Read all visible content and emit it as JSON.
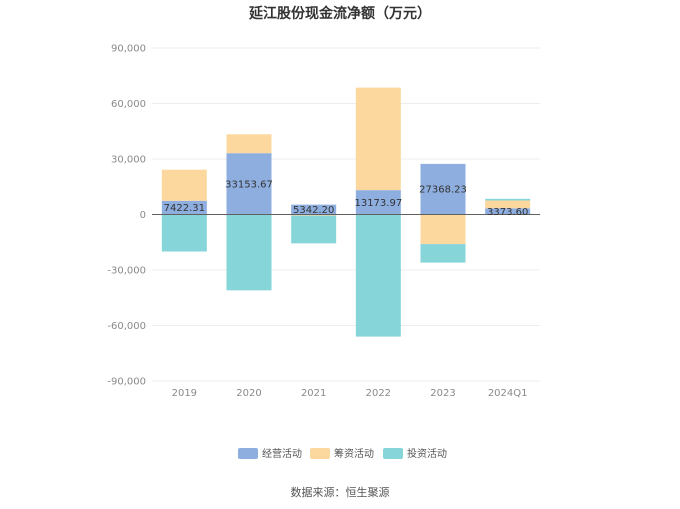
{
  "chart_data": {
    "type": "bar",
    "stacked": true,
    "title": "延江股份现金流净额（万元）",
    "categories": [
      "2019",
      "2020",
      "2021",
      "2022",
      "2023",
      "2024Q1"
    ],
    "series": [
      {
        "name": "经营活动",
        "color": "#8eaee0",
        "values": [
          7422.31,
          33153.67,
          5342.2,
          13173.97,
          27368.23,
          3373.6
        ]
      },
      {
        "name": "筹资活动",
        "color": "#fdd89e",
        "values": [
          16800,
          10200,
          -600,
          55400,
          -16000,
          4200
        ]
      },
      {
        "name": "投资活动",
        "color": "#86d5d9",
        "values": [
          -20000,
          -41000,
          -15000,
          -66000,
          -10000,
          900
        ]
      }
    ],
    "data_labels": [
      "7422.31",
      "33153.67",
      "5342.20",
      "13173.97",
      "27368.23",
      "3373.60"
    ],
    "yticks": [
      "90,000",
      "60,000",
      "30,000",
      "0",
      "-30,000",
      "-60,000",
      "-90,000"
    ],
    "ylim": [
      -90000,
      90000
    ],
    "grid": true,
    "legend_position": "bottom"
  },
  "source": "数据来源：恒生聚源"
}
